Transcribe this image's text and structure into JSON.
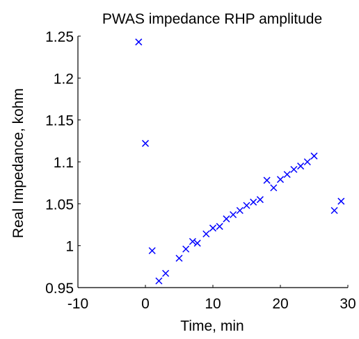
{
  "chart_data": {
    "type": "scatter",
    "title": "PWAS impedance RHP amplitude",
    "xlabel": "Time, min",
    "ylabel": "Real Impedance, kohm",
    "xlim": [
      -10,
      30
    ],
    "ylim": [
      0.95,
      1.25
    ],
    "xticks": [
      -10,
      0,
      10,
      20,
      30
    ],
    "xtick_labels": [
      "-10",
      "0",
      "10",
      "20",
      "30"
    ],
    "yticks": [
      0.95,
      1.0,
      1.05,
      1.1,
      1.15,
      1.2,
      1.25
    ],
    "ytick_labels": [
      "0.95",
      "1",
      "1.05",
      "1.1",
      "1.15",
      "1.2",
      "1.25"
    ],
    "grid": false,
    "marker": "x",
    "color": "#0000ff",
    "series": [
      {
        "points": [
          [
            -1,
            1.243
          ],
          [
            0,
            1.122
          ],
          [
            1,
            0.994
          ],
          [
            2,
            0.958
          ],
          [
            3,
            0.967
          ],
          [
            5,
            0.985
          ],
          [
            6,
            0.996
          ],
          [
            7,
            1.005
          ],
          [
            7.7,
            1.003
          ],
          [
            9,
            1.014
          ],
          [
            10,
            1.021
          ],
          [
            11,
            1.023
          ],
          [
            12,
            1.032
          ],
          [
            13,
            1.037
          ],
          [
            14,
            1.042
          ],
          [
            15,
            1.048
          ],
          [
            16,
            1.052
          ],
          [
            17,
            1.055
          ],
          [
            18,
            1.078
          ],
          [
            19,
            1.069
          ],
          [
            20,
            1.079
          ],
          [
            21,
            1.085
          ],
          [
            22,
            1.091
          ],
          [
            23,
            1.095
          ],
          [
            24,
            1.1
          ],
          [
            25,
            1.107
          ],
          [
            28,
            1.042
          ],
          [
            29,
            1.053
          ]
        ]
      }
    ]
  }
}
